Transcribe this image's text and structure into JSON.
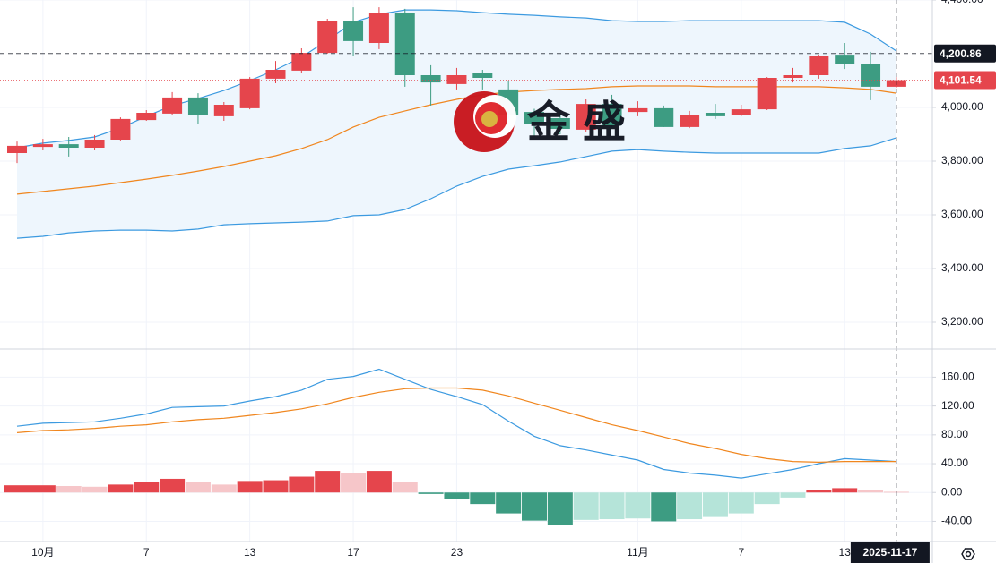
{
  "watermark": "金盛",
  "chart_data": [
    {
      "type": "candlestick",
      "categories": [
        null,
        "10月",
        null,
        null,
        null,
        "7",
        null,
        null,
        null,
        "13",
        null,
        null,
        null,
        "17",
        null,
        null,
        null,
        "23",
        null,
        null,
        null,
        null,
        null,
        null,
        "11月",
        null,
        null,
        null,
        "7",
        null,
        null,
        null,
        "13",
        null,
        "2025-11-17"
      ],
      "open": [
        3830,
        3853,
        3863,
        3850,
        3880,
        3953,
        3977,
        4037,
        3967,
        3997,
        4107,
        4137,
        4203,
        4323,
        4240,
        4353,
        4120,
        4087,
        4127,
        4067,
        3983,
        3960,
        3917,
        4013,
        3983,
        3997,
        3927,
        3980,
        3973,
        3993,
        4110,
        4120,
        4193,
        4163,
        4077
      ],
      "high": [
        3873,
        3883,
        3890,
        3897,
        3963,
        3990,
        4057,
        4053,
        4020,
        4113,
        4173,
        4220,
        4330,
        4373,
        4373,
        4367,
        4157,
        4147,
        4140,
        4100,
        3995,
        3990,
        4030,
        4047,
        4023,
        4007,
        3987,
        4013,
        4010,
        4113,
        4147,
        4193,
        4240,
        4207,
        4113
      ],
      "low": [
        3793,
        3840,
        3817,
        3840,
        3877,
        3950,
        3973,
        3940,
        3950,
        3993,
        4090,
        4130,
        4200,
        4190,
        4217,
        4077,
        4007,
        4067,
        4067,
        3957,
        3890,
        3900,
        3910,
        3927,
        3967,
        3927,
        3923,
        3957,
        3967,
        3990,
        4093,
        4107,
        4143,
        4027,
        4073
      ],
      "close": [
        3857,
        3863,
        3850,
        3880,
        3957,
        3980,
        4037,
        3970,
        4010,
        4107,
        4140,
        4203,
        4323,
        4247,
        4350,
        4120,
        4093,
        4120,
        4110,
        3973,
        3940,
        3920,
        4013,
        3933,
        3997,
        3927,
        3973,
        3967,
        3993,
        4110,
        4120,
        4190,
        4163,
        4077,
        4101.54
      ],
      "up_color": "#e5454c",
      "down_color": "#3d9c82",
      "overlays": [
        {
          "color": "#3c9ae0",
          "values": [
            3850,
            3867,
            3877,
            3890,
            3923,
            3967,
            4007,
            4033,
            4063,
            4100,
            4140,
            4187,
            4250,
            4317,
            4347,
            4363,
            4363,
            4360,
            4353,
            4347,
            4343,
            4337,
            4333,
            4323,
            4320,
            4320,
            4323,
            4323,
            4323,
            4323,
            4323,
            4323,
            4317,
            4273,
            4210
          ]
        },
        {
          "color": "#f0861e",
          "values": [
            3677,
            3687,
            3697,
            3707,
            3720,
            3733,
            3747,
            3763,
            3780,
            3800,
            3820,
            3847,
            3880,
            3927,
            3963,
            3987,
            4010,
            4030,
            4047,
            4057,
            4063,
            4067,
            4070,
            4077,
            4080,
            4080,
            4080,
            4077,
            4077,
            4077,
            4077,
            4077,
            4073,
            4067,
            4053
          ]
        },
        {
          "color": "#3c9ae0",
          "values": [
            3513,
            3520,
            3533,
            3540,
            3543,
            3543,
            3540,
            3547,
            3563,
            3567,
            3570,
            3573,
            3577,
            3597,
            3600,
            3620,
            3660,
            3707,
            3743,
            3770,
            3783,
            3797,
            3817,
            3837,
            3843,
            3837,
            3833,
            3830,
            3830,
            3830,
            3830,
            3830,
            3847,
            3857,
            3887
          ]
        }
      ],
      "band_fill": "#eef6fd",
      "ylim": [
        3100,
        4400
      ],
      "yticks": [
        {
          "value": 3200,
          "label": "3,200.00"
        },
        {
          "value": 3400,
          "label": "3,400.00"
        },
        {
          "value": 3600,
          "label": "3,600.00"
        },
        {
          "value": 3800,
          "label": "3,800.00"
        },
        {
          "value": 4000,
          "label": "4,000.00"
        },
        {
          "value": 4400,
          "label": "4,400.00"
        }
      ],
      "grid": true,
      "price_markers": [
        {
          "value": 4200.86,
          "label": "4,200.86",
          "color": "#131722",
          "line": "dashed"
        },
        {
          "value": 4101.54,
          "label": "4,101.54",
          "color": "#e5454c",
          "line": "dotted"
        }
      ]
    },
    {
      "type": "macd",
      "histogram": {
        "values": [
          10,
          10,
          9,
          8,
          11,
          14,
          19,
          14,
          11,
          16,
          17,
          22,
          30,
          27,
          30,
          14,
          -2,
          -9,
          -16,
          -29,
          -39,
          -45,
          -38,
          -37,
          -36,
          -40,
          -37,
          -34,
          -29,
          -16,
          -7,
          4,
          6,
          4,
          1
        ],
        "up_strong": "#e5454c",
        "up_light": "#f6c6c9",
        "down_strong": "#3d9c82",
        "down_light": "#b5e4d9"
      },
      "series": [
        {
          "color": "#3c9ae0",
          "values": [
            92,
            96,
            97,
            98,
            103,
            109,
            118,
            119,
            120,
            127,
            133,
            142,
            157,
            161,
            171,
            157,
            143,
            133,
            122,
            99,
            78,
            65,
            59,
            52,
            45,
            32,
            27,
            24,
            20,
            26,
            32,
            40,
            47,
            45,
            43
          ]
        },
        {
          "color": "#f0861e",
          "values": [
            83,
            86,
            87,
            89,
            92,
            94,
            98,
            101,
            103,
            107,
            111,
            116,
            123,
            132,
            139,
            144,
            145,
            145,
            142,
            134,
            124,
            114,
            104,
            94,
            86,
            77,
            68,
            61,
            53,
            47,
            43,
            42,
            43,
            43,
            43
          ]
        }
      ],
      "ylim": [
        -68,
        199
      ],
      "yticks": [
        {
          "value": -40,
          "label": "-40.00"
        },
        {
          "value": 0,
          "label": "0.00"
        },
        {
          "value": 40,
          "label": "40.00"
        },
        {
          "value": 80,
          "label": "80.00"
        },
        {
          "value": 120,
          "label": "120.00"
        },
        {
          "value": 160,
          "label": "160.00"
        }
      ],
      "grid": true
    }
  ]
}
